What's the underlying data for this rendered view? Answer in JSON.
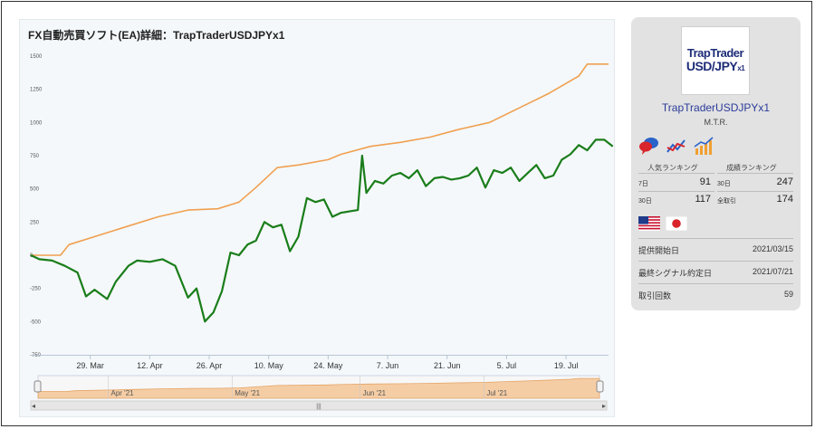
{
  "page": {
    "title": "FX自動売買ソフト(EA)詳細：TrapTraderUSDJPYx1"
  },
  "chart_data": {
    "type": "line",
    "title": "FX自動売買ソフト(EA)詳細：TrapTraderUSDJPYx1",
    "ylim": [
      -750,
      1500
    ],
    "y_ticks": [
      "1500",
      "1250",
      "1000",
      "750",
      "500",
      "250",
      "0",
      "-250",
      "-500",
      "-750"
    ],
    "y_tick_values": [
      1500,
      1250,
      1000,
      750,
      500,
      250,
      0,
      -250,
      -500,
      -750
    ],
    "x_ticks": [
      "29. Mar",
      "12. Apr",
      "26. Apr",
      "10. May",
      "24. May",
      "7. Jun",
      "21. Jun",
      "5. Jul",
      "19. Jul"
    ],
    "x_range": [
      "2021-03-15",
      "2021-07-29"
    ],
    "grid": false,
    "series": [
      {
        "color": "#f0a050",
        "values": [
          [
            "2021-03-15",
            0
          ],
          [
            "2021-03-22",
            0
          ],
          [
            "2021-03-24",
            80
          ],
          [
            "2021-03-31",
            150
          ],
          [
            "2021-04-07",
            220
          ],
          [
            "2021-04-14",
            290
          ],
          [
            "2021-04-21",
            340
          ],
          [
            "2021-04-28",
            350
          ],
          [
            "2021-05-03",
            400
          ],
          [
            "2021-05-07",
            510
          ],
          [
            "2021-05-12",
            660
          ],
          [
            "2021-05-17",
            680
          ],
          [
            "2021-05-24",
            720
          ],
          [
            "2021-05-27",
            760
          ],
          [
            "2021-06-03",
            820
          ],
          [
            "2021-06-10",
            850
          ],
          [
            "2021-06-17",
            890
          ],
          [
            "2021-06-24",
            950
          ],
          [
            "2021-07-01",
            1000
          ],
          [
            "2021-07-08",
            1110
          ],
          [
            "2021-07-15",
            1220
          ],
          [
            "2021-07-22",
            1350
          ],
          [
            "2021-07-24",
            1440
          ],
          [
            "2021-07-29",
            1440
          ]
        ]
      },
      {
        "color": "#1a7d1a",
        "values": [
          [
            "2021-03-15",
            0
          ],
          [
            "2021-03-17",
            -30
          ],
          [
            "2021-03-20",
            -40
          ],
          [
            "2021-03-23",
            -80
          ],
          [
            "2021-03-26",
            -130
          ],
          [
            "2021-03-28",
            -310
          ],
          [
            "2021-03-30",
            -260
          ],
          [
            "2021-04-02",
            -330
          ],
          [
            "2021-04-04",
            -200
          ],
          [
            "2021-04-07",
            -80
          ],
          [
            "2021-04-09",
            -40
          ],
          [
            "2021-04-12",
            -50
          ],
          [
            "2021-04-15",
            -30
          ],
          [
            "2021-04-18",
            -80
          ],
          [
            "2021-04-21",
            -320
          ],
          [
            "2021-04-23",
            -250
          ],
          [
            "2021-04-25",
            -500
          ],
          [
            "2021-04-27",
            -430
          ],
          [
            "2021-04-29",
            -270
          ],
          [
            "2021-05-01",
            20
          ],
          [
            "2021-05-03",
            0
          ],
          [
            "2021-05-05",
            80
          ],
          [
            "2021-05-07",
            110
          ],
          [
            "2021-05-09",
            250
          ],
          [
            "2021-05-11",
            210
          ],
          [
            "2021-05-13",
            230
          ],
          [
            "2021-05-15",
            30
          ],
          [
            "2021-05-17",
            140
          ],
          [
            "2021-05-19",
            430
          ],
          [
            "2021-05-21",
            400
          ],
          [
            "2021-05-23",
            420
          ],
          [
            "2021-05-25",
            290
          ],
          [
            "2021-05-27",
            320
          ],
          [
            "2021-05-29",
            330
          ],
          [
            "2021-05-31",
            340
          ],
          [
            "2021-06-01",
            750
          ],
          [
            "2021-06-02",
            470
          ],
          [
            "2021-06-04",
            560
          ],
          [
            "2021-06-06",
            540
          ],
          [
            "2021-06-08",
            600
          ],
          [
            "2021-06-10",
            620
          ],
          [
            "2021-06-12",
            580
          ],
          [
            "2021-06-14",
            640
          ],
          [
            "2021-06-16",
            520
          ],
          [
            "2021-06-18",
            580
          ],
          [
            "2021-06-20",
            590
          ],
          [
            "2021-06-22",
            570
          ],
          [
            "2021-06-24",
            580
          ],
          [
            "2021-06-26",
            600
          ],
          [
            "2021-06-28",
            660
          ],
          [
            "2021-06-30",
            510
          ],
          [
            "2021-07-02",
            640
          ],
          [
            "2021-07-04",
            620
          ],
          [
            "2021-07-06",
            660
          ],
          [
            "2021-07-08",
            560
          ],
          [
            "2021-07-10",
            620
          ],
          [
            "2021-07-12",
            680
          ],
          [
            "2021-07-14",
            580
          ],
          [
            "2021-07-16",
            600
          ],
          [
            "2021-07-18",
            720
          ],
          [
            "2021-07-20",
            760
          ],
          [
            "2021-07-22",
            830
          ],
          [
            "2021-07-24",
            790
          ],
          [
            "2021-07-26",
            870
          ],
          [
            "2021-07-28",
            870
          ],
          [
            "2021-07-30",
            820
          ]
        ]
      }
    ],
    "navigator": {
      "x_labels": [
        "Apr '21",
        "May '21",
        "Jun '21",
        "Jul '21"
      ]
    }
  },
  "ea": {
    "name": "TrapTraderUSDJPYx1",
    "author": "M.T.R.",
    "logo_line1": "TrapTrader",
    "logo_line2": "USD/JPY",
    "logo_suffix": "x1"
  },
  "icons": [
    "chat-bubbles-icon",
    "trend-line-icon",
    "bar-chart-icon"
  ],
  "ranking": {
    "popular_header": "人気ランキング",
    "performance_header": "成績ランキング",
    "popular": [
      {
        "label": "7日",
        "value": "91"
      },
      {
        "label": "30日",
        "value": "117"
      }
    ],
    "performance": [
      {
        "label": "30日",
        "value": "247"
      },
      {
        "label": "全取引",
        "value": "174"
      }
    ]
  },
  "currencies": [
    "us-flag-icon",
    "jp-flag-icon"
  ],
  "details": [
    {
      "label": "提供開始日",
      "value": "2021/03/15"
    },
    {
      "label": "最終シグナル約定日",
      "value": "2021/07/21"
    },
    {
      "label": "取引回数",
      "value": "59"
    }
  ]
}
